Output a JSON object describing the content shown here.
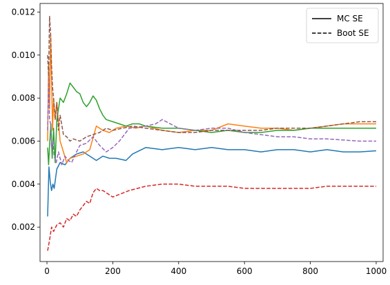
{
  "chart_data": {
    "type": "line",
    "title": "",
    "xlabel": "",
    "ylabel": "",
    "xlim": [
      -21,
      1021
    ],
    "ylim": [
      0.0004,
      0.0124
    ],
    "x_ticks": [
      0,
      200,
      400,
      600,
      800,
      1000
    ],
    "x_tick_labels": [
      "0",
      "200",
      "400",
      "600",
      "800",
      "1000"
    ],
    "y_ticks": [
      0.002,
      0.004,
      0.006,
      0.008,
      0.01,
      0.012
    ],
    "y_tick_labels": [
      "0.002",
      "0.004",
      "0.006",
      "0.008",
      "0.010",
      "0.012"
    ],
    "grid": false,
    "legend": {
      "placement": "top-right",
      "entries": [
        {
          "label": "MC SE",
          "style": "solid"
        },
        {
          "label": "Boot SE",
          "style": "dashed"
        }
      ]
    },
    "series": [
      {
        "color": "#1f77b4",
        "style": "solid",
        "x": [
          2,
          6,
          10,
          14,
          18,
          22,
          30,
          40,
          55,
          70,
          90,
          110,
          130,
          150,
          170,
          190,
          210,
          240,
          260,
          300,
          350,
          400,
          450,
          500,
          550,
          600,
          650,
          700,
          750,
          800,
          850,
          900,
          950,
          1000
        ],
        "y": [
          0.0025,
          0.0048,
          0.0041,
          0.0037,
          0.004,
          0.0038,
          0.0047,
          0.005,
          0.0049,
          0.0052,
          0.0054,
          0.0055,
          0.0053,
          0.0051,
          0.0053,
          0.0052,
          0.0052,
          0.0051,
          0.0054,
          0.0057,
          0.0056,
          0.0057,
          0.0056,
          0.0057,
          0.0056,
          0.0056,
          0.0055,
          0.0056,
          0.0056,
          0.0055,
          0.0056,
          0.0055,
          0.0055,
          0.00555
        ]
      },
      {
        "color": "#ff7f0e",
        "style": "solid",
        "x": [
          2,
          5,
          8,
          11,
          14,
          17,
          20,
          25,
          30,
          40,
          50,
          60,
          70,
          90,
          110,
          130,
          150,
          170,
          190,
          210,
          240,
          270,
          300,
          350,
          400,
          450,
          500,
          550,
          600,
          650,
          700,
          750,
          800,
          850,
          900,
          950,
          1000
        ],
        "y": [
          0.006,
          0.0095,
          0.0075,
          0.011,
          0.009,
          0.0065,
          0.008,
          0.007,
          0.0078,
          0.006,
          0.0055,
          0.005,
          0.0052,
          0.0053,
          0.0054,
          0.0056,
          0.0067,
          0.0065,
          0.0064,
          0.0066,
          0.0067,
          0.0066,
          0.0067,
          0.0065,
          0.0064,
          0.0065,
          0.0065,
          0.0068,
          0.0067,
          0.0066,
          0.0066,
          0.0065,
          0.0066,
          0.0067,
          0.0068,
          0.0068,
          0.0068
        ]
      },
      {
        "color": "#2ca02c",
        "style": "solid",
        "x": [
          2,
          5,
          8,
          12,
          16,
          20,
          25,
          30,
          35,
          40,
          50,
          60,
          70,
          80,
          90,
          100,
          110,
          120,
          130,
          140,
          150,
          160,
          170,
          180,
          200,
          220,
          240,
          260,
          280,
          300,
          350,
          400,
          450,
          500,
          550,
          600,
          650,
          700,
          750,
          800,
          850,
          900,
          950,
          1000
        ],
        "y": [
          0.0057,
          0.0049,
          0.0058,
          0.0068,
          0.0052,
          0.0066,
          0.005,
          0.007,
          0.0075,
          0.008,
          0.0078,
          0.0082,
          0.0087,
          0.0085,
          0.0083,
          0.0082,
          0.0078,
          0.0076,
          0.0078,
          0.0081,
          0.0079,
          0.0075,
          0.0072,
          0.007,
          0.0069,
          0.0068,
          0.0067,
          0.0068,
          0.0068,
          0.0067,
          0.0066,
          0.0066,
          0.0065,
          0.0064,
          0.0065,
          0.0064,
          0.0064,
          0.0065,
          0.0065,
          0.0066,
          0.0066,
          0.0066,
          0.0066,
          0.0066
        ]
      },
      {
        "color": "#d62728",
        "style": "dashed",
        "x": [
          2,
          8,
          14,
          20,
          30,
          40,
          50,
          60,
          70,
          80,
          90,
          100,
          110,
          120,
          130,
          140,
          150,
          160,
          170,
          180,
          190,
          200,
          250,
          300,
          350,
          400,
          450,
          500,
          550,
          600,
          650,
          700,
          750,
          800,
          850,
          900,
          950,
          1000
        ],
        "y": [
          0.0009,
          0.0014,
          0.002,
          0.0018,
          0.0021,
          0.0022,
          0.002,
          0.0024,
          0.0023,
          0.0026,
          0.0025,
          0.0028,
          0.003,
          0.0032,
          0.0031,
          0.0036,
          0.0038,
          0.0037,
          0.0037,
          0.0036,
          0.0035,
          0.0034,
          0.0037,
          0.0039,
          0.004,
          0.004,
          0.0039,
          0.0039,
          0.0039,
          0.0038,
          0.0038,
          0.0038,
          0.0038,
          0.0038,
          0.0039,
          0.0039,
          0.0039,
          0.0039
        ]
      },
      {
        "color": "#9467bd",
        "style": "dashed",
        "x": [
          2,
          5,
          8,
          11,
          14,
          18,
          22,
          28,
          35,
          45,
          55,
          65,
          75,
          90,
          100,
          120,
          140,
          160,
          180,
          200,
          220,
          250,
          300,
          330,
          350,
          400,
          450,
          500,
          550,
          600,
          650,
          700,
          750,
          800,
          850,
          900,
          950,
          1000
        ],
        "y": [
          0.0065,
          0.009,
          0.007,
          0.0068,
          0.0057,
          0.006,
          0.0053,
          0.005,
          0.0055,
          0.0049,
          0.0053,
          0.0051,
          0.005,
          0.0055,
          0.0058,
          0.0059,
          0.0062,
          0.0058,
          0.0055,
          0.0057,
          0.006,
          0.0066,
          0.0067,
          0.0068,
          0.007,
          0.0066,
          0.0065,
          0.0066,
          0.0066,
          0.0064,
          0.0063,
          0.0062,
          0.0062,
          0.0061,
          0.0061,
          0.00605,
          0.006,
          0.006
        ]
      },
      {
        "color": "#8c564b",
        "style": "dashed",
        "x": [
          2,
          5,
          8,
          11,
          14,
          17,
          20,
          25,
          30,
          35,
          40,
          50,
          60,
          70,
          80,
          100,
          120,
          140,
          160,
          180,
          200,
          230,
          260,
          300,
          350,
          400,
          450,
          500,
          550,
          600,
          650,
          700,
          750,
          800,
          850,
          900,
          950,
          1000
        ],
        "y": [
          0.01,
          0.009,
          0.0118,
          0.011,
          0.0095,
          0.0085,
          0.008,
          0.007,
          0.0078,
          0.0065,
          0.0072,
          0.0063,
          0.0062,
          0.006,
          0.0061,
          0.006,
          0.0062,
          0.0063,
          0.0064,
          0.0066,
          0.0065,
          0.0066,
          0.0067,
          0.0066,
          0.0065,
          0.0064,
          0.0064,
          0.0065,
          0.0065,
          0.0065,
          0.0065,
          0.0066,
          0.0066,
          0.0066,
          0.0067,
          0.0068,
          0.0069,
          0.0069
        ]
      }
    ]
  }
}
